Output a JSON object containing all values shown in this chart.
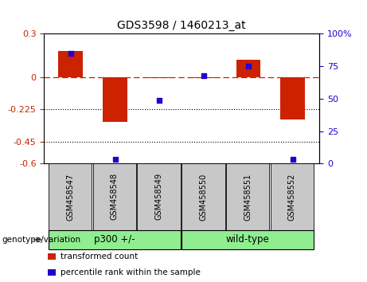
{
  "title": "GDS3598 / 1460213_at",
  "samples": [
    "GSM458547",
    "GSM458548",
    "GSM458549",
    "GSM458550",
    "GSM458551",
    "GSM458552"
  ],
  "red_values": [
    0.18,
    -0.31,
    -0.005,
    -0.005,
    0.12,
    -0.295
  ],
  "blue_values": [
    85,
    3,
    49,
    68,
    75,
    3
  ],
  "ylim_left": [
    -0.6,
    0.3
  ],
  "ylim_right": [
    0,
    100
  ],
  "yticks_left": [
    0.3,
    0,
    -0.225,
    -0.45,
    -0.6
  ],
  "yticks_right": [
    100,
    75,
    50,
    25,
    0
  ],
  "hlines": [
    -0.225,
    -0.45
  ],
  "bar_width": 0.55,
  "red_color": "#CC2200",
  "blue_color": "#2200CC",
  "legend1": "transformed count",
  "legend2": "percentile rank within the sample",
  "group_label": "genotype/variation",
  "group_spans": [
    [
      0,
      3,
      "p300 +/-"
    ],
    [
      3,
      6,
      "wild-type"
    ]
  ],
  "group_color": "#90EE90",
  "sample_box_color": "#C8C8C8",
  "arrow_color": "#808080"
}
